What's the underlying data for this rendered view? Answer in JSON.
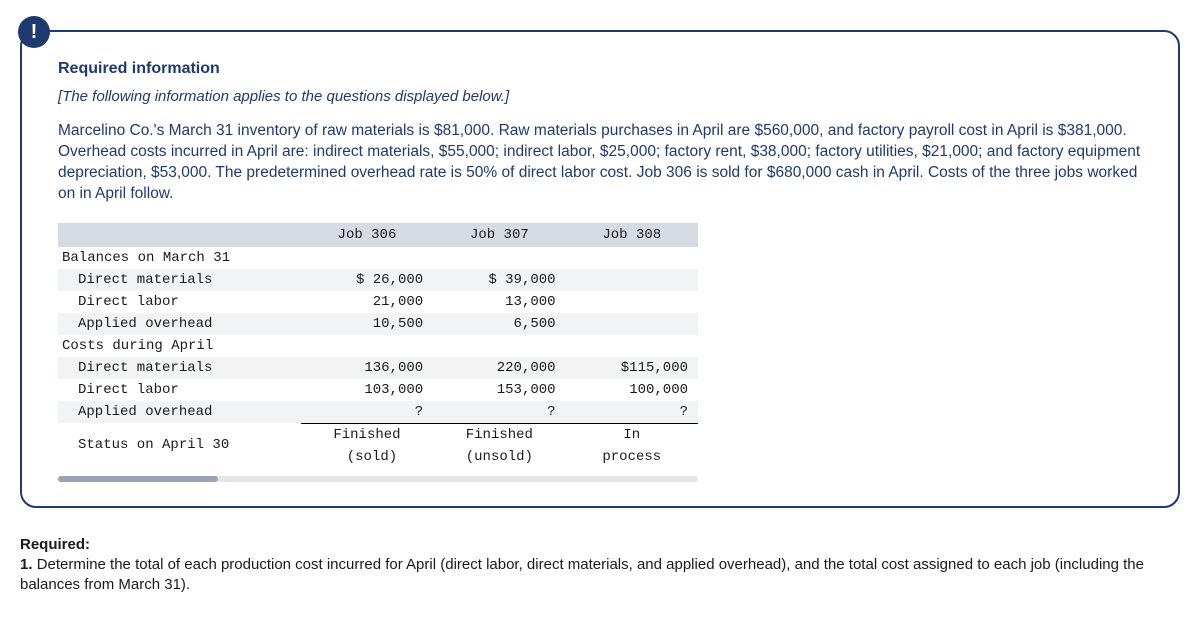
{
  "badge": "!",
  "header": {
    "required_info": "Required information",
    "applies": "[The following information applies to the questions displayed below.]"
  },
  "prompt": "Marcelino Co.'s March 31 inventory of raw materials is $81,000. Raw materials purchases in April are $560,000, and factory payroll cost in April is $381,000. Overhead costs incurred in April are: indirect materials, $55,000; indirect labor, $25,000; factory rent, $38,000; factory utilities, $21,000; and factory equipment depreciation, $53,000. The predetermined overhead rate is 50% of direct labor cost. Job 306 is sold for $680,000 cash in April. Costs of the three jobs worked on in April follow.",
  "table": {
    "columns": {
      "blank": "",
      "j306": "Job 306",
      "j307": "Job 307",
      "j308": "Job 308"
    },
    "sections": {
      "balances": {
        "label": "Balances on March 31",
        "dm": {
          "label": "Direct materials",
          "j306": "$ 26,000",
          "j307": "$  39,000",
          "j308": ""
        },
        "dl": {
          "label": "Direct labor",
          "j306": "21,000",
          "j307": "13,000",
          "j308": ""
        },
        "oh": {
          "label": "Applied overhead",
          "j306": "10,500",
          "j307": "6,500",
          "j308": ""
        }
      },
      "april": {
        "label": "Costs during April",
        "dm": {
          "label": "Direct materials",
          "j306": "136,000",
          "j307": "220,000",
          "j308": "$115,000"
        },
        "dl": {
          "label": "Direct labor",
          "j306": "103,000",
          "j307": "153,000",
          "j308": "100,000"
        },
        "oh": {
          "label": "Applied overhead",
          "j306": "?",
          "j307": "?",
          "j308": "?"
        }
      },
      "status": {
        "label": "Status on April 30",
        "j306a": "Finished",
        "j306b": "(sold)",
        "j307a": "Finished",
        "j307b": "(unsold)",
        "j308a": "In",
        "j308b": "process"
      }
    }
  },
  "required": {
    "title": "Required:",
    "num": "1.",
    "text": "Determine the total of each production cost incurred for April (direct labor, direct materials, and applied overhead), and the total cost assigned to each job (including the balances from March 31)."
  },
  "colors": {
    "brand": "#1f3a6e",
    "header_bg": "#d6dbe3",
    "zebra_bg": "#f2f3f5",
    "scroll_track": "#e6e6e6",
    "scroll_thumb": "#9aa4b2"
  }
}
